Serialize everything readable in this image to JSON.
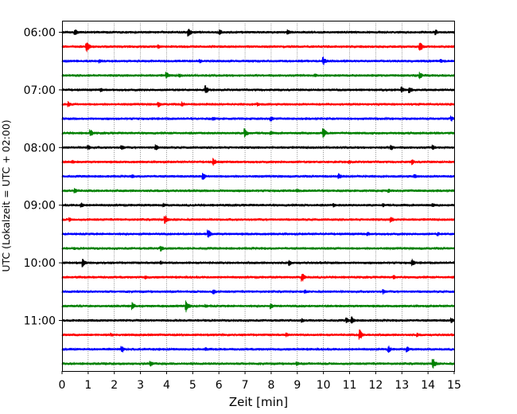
{
  "chart_data": {
    "type": "line",
    "title": "",
    "xlabel": "Zeit  [min]",
    "ylabel": "UTC (Lokalzeit = UTC + 02:00)",
    "xlim": [
      0,
      15
    ],
    "x_ticks": [
      "0",
      "1",
      "2",
      "3",
      "4",
      "5",
      "6",
      "7",
      "8",
      "9",
      "10",
      "11",
      "12",
      "13",
      "14",
      "15"
    ],
    "y_ticks": [
      "06:00",
      "07:00",
      "08:00",
      "09:00",
      "10:00",
      "11:00"
    ],
    "grid": "vertical dotted lines at each minute",
    "legend": "none",
    "trace_colors": [
      "#000000",
      "#ff0000",
      "#0000ff",
      "#008000"
    ],
    "trace_interval_min": 15,
    "series": [
      {
        "start": "06:00",
        "color": "#000000",
        "events": [
          {
            "t": 0.5,
            "amp": 5
          },
          {
            "t": 4.85,
            "amp": 6
          },
          {
            "t": 6.05,
            "amp": 4
          },
          {
            "t": 8.65,
            "amp": 4
          },
          {
            "t": 14.3,
            "amp": 4
          }
        ]
      },
      {
        "start": "06:15",
        "color": "#ff0000",
        "events": [
          {
            "t": 0.95,
            "amp": 7
          },
          {
            "t": 13.7,
            "amp": 7
          },
          {
            "t": 3.7,
            "amp": 3
          }
        ]
      },
      {
        "start": "06:30",
        "color": "#0000ff",
        "events": [
          {
            "t": 1.45,
            "amp": 3
          },
          {
            "t": 10.0,
            "amp": 6
          },
          {
            "t": 5.3,
            "amp": 3
          },
          {
            "t": 14.5,
            "amp": 3
          }
        ]
      },
      {
        "start": "06:45",
        "color": "#008000",
        "events": [
          {
            "t": 4.0,
            "amp": 5
          },
          {
            "t": 4.5,
            "amp": 3
          },
          {
            "t": 13.7,
            "amp": 5
          },
          {
            "t": 9.7,
            "amp": 3
          }
        ]
      },
      {
        "start": "07:00",
        "color": "#000000",
        "events": [
          {
            "t": 5.5,
            "amp": 6
          },
          {
            "t": 13.0,
            "amp": 5
          },
          {
            "t": 13.3,
            "amp": 5
          },
          {
            "t": 1.5,
            "amp": 3
          }
        ]
      },
      {
        "start": "07:15",
        "color": "#ff0000",
        "events": [
          {
            "t": 0.25,
            "amp": 4
          },
          {
            "t": 3.7,
            "amp": 4
          },
          {
            "t": 4.6,
            "amp": 4
          },
          {
            "t": 7.5,
            "amp": 3
          }
        ]
      },
      {
        "start": "07:30",
        "color": "#0000ff",
        "events": [
          {
            "t": 5.8,
            "amp": 3
          },
          {
            "t": 8.0,
            "amp": 4
          },
          {
            "t": 14.9,
            "amp": 4
          }
        ]
      },
      {
        "start": "07:45",
        "color": "#008000",
        "events": [
          {
            "t": 1.1,
            "amp": 5
          },
          {
            "t": 7.0,
            "amp": 7
          },
          {
            "t": 10.0,
            "amp": 7
          },
          {
            "t": 8.0,
            "amp": 3
          }
        ]
      },
      {
        "start": "08:00",
        "color": "#000000",
        "events": [
          {
            "t": 1.0,
            "amp": 4
          },
          {
            "t": 2.3,
            "amp": 4
          },
          {
            "t": 3.6,
            "amp": 4
          },
          {
            "t": 12.6,
            "amp": 4
          },
          {
            "t": 14.2,
            "amp": 4
          }
        ]
      },
      {
        "start": "08:15",
        "color": "#ff0000",
        "events": [
          {
            "t": 5.8,
            "amp": 5
          },
          {
            "t": 13.4,
            "amp": 4
          },
          {
            "t": 11.0,
            "amp": 3
          },
          {
            "t": 0.4,
            "amp": 3
          }
        ]
      },
      {
        "start": "08:30",
        "color": "#0000ff",
        "events": [
          {
            "t": 5.4,
            "amp": 5
          },
          {
            "t": 2.7,
            "amp": 3
          },
          {
            "t": 10.6,
            "amp": 4
          },
          {
            "t": 13.5,
            "amp": 3
          }
        ]
      },
      {
        "start": "08:45",
        "color": "#008000",
        "events": [
          {
            "t": 0.5,
            "amp": 4
          },
          {
            "t": 9.0,
            "amp": 3
          },
          {
            "t": 12.5,
            "amp": 3
          },
          {
            "t": 7.0,
            "amp": 2
          }
        ]
      },
      {
        "start": "09:00",
        "color": "#000000",
        "events": [
          {
            "t": 0.75,
            "amp": 4
          },
          {
            "t": 3.9,
            "amp": 3
          },
          {
            "t": 10.4,
            "amp": 3
          },
          {
            "t": 12.3,
            "amp": 3
          },
          {
            "t": 14.2,
            "amp": 3
          }
        ]
      },
      {
        "start": "09:15",
        "color": "#ff0000",
        "events": [
          {
            "t": 0.3,
            "amp": 3
          },
          {
            "t": 3.95,
            "amp": 6
          },
          {
            "t": 12.6,
            "amp": 4
          }
        ]
      },
      {
        "start": "09:30",
        "color": "#0000ff",
        "events": [
          {
            "t": 5.6,
            "amp": 6
          },
          {
            "t": 11.7,
            "amp": 3
          },
          {
            "t": 14.4,
            "amp": 3
          }
        ]
      },
      {
        "start": "09:45",
        "color": "#008000",
        "events": [
          {
            "t": 3.8,
            "amp": 4
          },
          {
            "t": 0.5,
            "amp": 2
          },
          {
            "t": 10.2,
            "amp": 2
          }
        ]
      },
      {
        "start": "10:00",
        "color": "#000000",
        "events": [
          {
            "t": 0.8,
            "amp": 6
          },
          {
            "t": 8.7,
            "amp": 4
          },
          {
            "t": 13.4,
            "amp": 5
          },
          {
            "t": 3.8,
            "amp": 3
          }
        ]
      },
      {
        "start": "10:15",
        "color": "#ff0000",
        "events": [
          {
            "t": 9.2,
            "amp": 6
          },
          {
            "t": 3.2,
            "amp": 3
          },
          {
            "t": 12.7,
            "amp": 3
          }
        ]
      },
      {
        "start": "10:30",
        "color": "#0000ff",
        "events": [
          {
            "t": 5.8,
            "amp": 4
          },
          {
            "t": 12.3,
            "amp": 4
          },
          {
            "t": 9.3,
            "amp": 3
          },
          {
            "t": 0.6,
            "amp": 2
          }
        ]
      },
      {
        "start": "10:45",
        "color": "#008000",
        "events": [
          {
            "t": 2.7,
            "amp": 5
          },
          {
            "t": 4.75,
            "amp": 8
          },
          {
            "t": 8.0,
            "amp": 4
          },
          {
            "t": 5.5,
            "amp": 3
          }
        ]
      },
      {
        "start": "11:00",
        "color": "#000000",
        "events": [
          {
            "t": 11.1,
            "amp": 5
          },
          {
            "t": 14.9,
            "amp": 4
          },
          {
            "t": 9.2,
            "amp": 3
          },
          {
            "t": 10.9,
            "amp": 4
          }
        ]
      },
      {
        "start": "11:15",
        "color": "#ff0000",
        "events": [
          {
            "t": 11.4,
            "amp": 7
          },
          {
            "t": 1.9,
            "amp": 3
          },
          {
            "t": 8.6,
            "amp": 3
          },
          {
            "t": 13.6,
            "amp": 3
          }
        ]
      },
      {
        "start": "11:30",
        "color": "#0000ff",
        "events": [
          {
            "t": 2.3,
            "amp": 5
          },
          {
            "t": 12.5,
            "amp": 5
          },
          {
            "t": 13.2,
            "amp": 4
          },
          {
            "t": 5.5,
            "amp": 3
          }
        ]
      },
      {
        "start": "11:45",
        "color": "#008000",
        "events": [
          {
            "t": 3.4,
            "amp": 4
          },
          {
            "t": 14.2,
            "amp": 7
          },
          {
            "t": 9.0,
            "amp": 3
          }
        ]
      }
    ]
  }
}
